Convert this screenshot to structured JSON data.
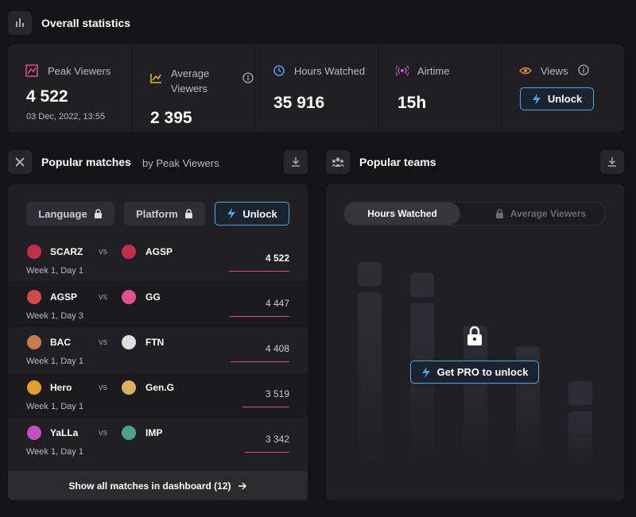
{
  "header": {
    "title": "Overall statistics"
  },
  "stats": [
    {
      "label": "Peak Viewers",
      "value": "4 522",
      "sub": "03 Dec, 2022, 13:55"
    },
    {
      "label": "Average Viewers",
      "value": "2 395"
    },
    {
      "label": "Hours Watched",
      "value": "35 916"
    },
    {
      "label": "Airtime",
      "value": "15h"
    },
    {
      "label": "Views",
      "button": "Unlock"
    }
  ],
  "matches": {
    "title": "Popular matches",
    "subtitle": "by Peak Viewers",
    "filters": [
      "Language",
      "Platform"
    ],
    "unlock": "Unlock",
    "vs": "vs",
    "rows": [
      {
        "team1": "SCARZ",
        "team2": "AGSP",
        "stage": "Week 1, Day 1",
        "value": "4 522"
      },
      {
        "team1": "AGSP",
        "team2": "GG",
        "stage": "Week 1, Day 3",
        "value": "4 447"
      },
      {
        "team1": "BAC",
        "team2": "FTN",
        "stage": "Week 1, Day 1",
        "value": "4 408"
      },
      {
        "team1": "Hero",
        "team2": "Gen.G",
        "stage": "Week 1, Day 1",
        "value": "3 519"
      },
      {
        "team1": "YaLLa",
        "team2": "IMP",
        "stage": "Week 1, Day 1",
        "value": "3 342"
      }
    ],
    "footer": "Show all matches in dashboard (12)"
  },
  "teams": {
    "title": "Popular teams",
    "tabs": [
      "Hours Watched",
      "Average Viewers"
    ],
    "cta": "Get PRO to unlock"
  }
}
